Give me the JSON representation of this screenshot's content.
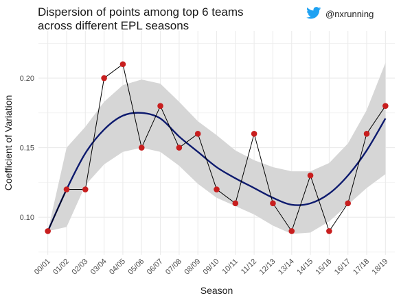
{
  "header": {
    "title_line1": "Dispersion of points among top 6 teams",
    "title_line2": "across different EPL seasons",
    "handle": "@nxrunning",
    "handle_icon": "twitter-bird-icon",
    "handle_icon_color": "#1DA1F2"
  },
  "chart_data": {
    "type": "line",
    "title": "Dispersion of points among top 6 teams across different EPL seasons",
    "xlabel": "Season",
    "ylabel": "Coefficient of Variation",
    "categories": [
      "00/01",
      "01/02",
      "02/03",
      "03/04",
      "04/05",
      "05/06",
      "06/07",
      "07/08",
      "08/09",
      "09/10",
      "10/11",
      "11/12",
      "12/13",
      "13/14",
      "14/15",
      "15/16",
      "16/17",
      "17/18",
      "18/19"
    ],
    "series": [
      {
        "values": [
          0.09,
          0.12,
          0.12,
          0.2,
          0.21,
          0.15,
          0.18,
          0.15,
          0.16,
          0.12,
          0.11,
          0.16,
          0.11,
          0.09,
          0.13,
          0.09,
          0.11,
          0.16,
          0.18
        ],
        "style": "black line with red points"
      },
      {
        "values": [
          0.09,
          0.12,
          0.146,
          0.163,
          0.173,
          0.175,
          0.171,
          0.158,
          0.147,
          0.136,
          0.128,
          0.121,
          0.114,
          0.109,
          0.11,
          0.117,
          0.13,
          0.148,
          0.171
        ],
        "style": "navy smooth trend line"
      }
    ],
    "confidence_band": {
      "lower": [
        0.09,
        0.093,
        0.123,
        0.138,
        0.147,
        0.15,
        0.147,
        0.137,
        0.124,
        0.114,
        0.108,
        0.102,
        0.094,
        0.088,
        0.089,
        0.097,
        0.109,
        0.121,
        0.131
      ],
      "upper": [
        0.09,
        0.15,
        0.165,
        0.183,
        0.195,
        0.199,
        0.196,
        0.183,
        0.169,
        0.159,
        0.148,
        0.141,
        0.136,
        0.133,
        0.133,
        0.139,
        0.153,
        0.177,
        0.211
      ]
    },
    "y_ticks": [
      "0.10",
      "0.15",
      "0.20"
    ],
    "ylim": [
      0.073,
      0.234
    ],
    "grid": true,
    "colors": {
      "points": "#c81e1e",
      "observed_line": "#000000",
      "trend": "#0d1a6e",
      "band": "#d6d6d6",
      "grid": "#ebebeb"
    }
  }
}
